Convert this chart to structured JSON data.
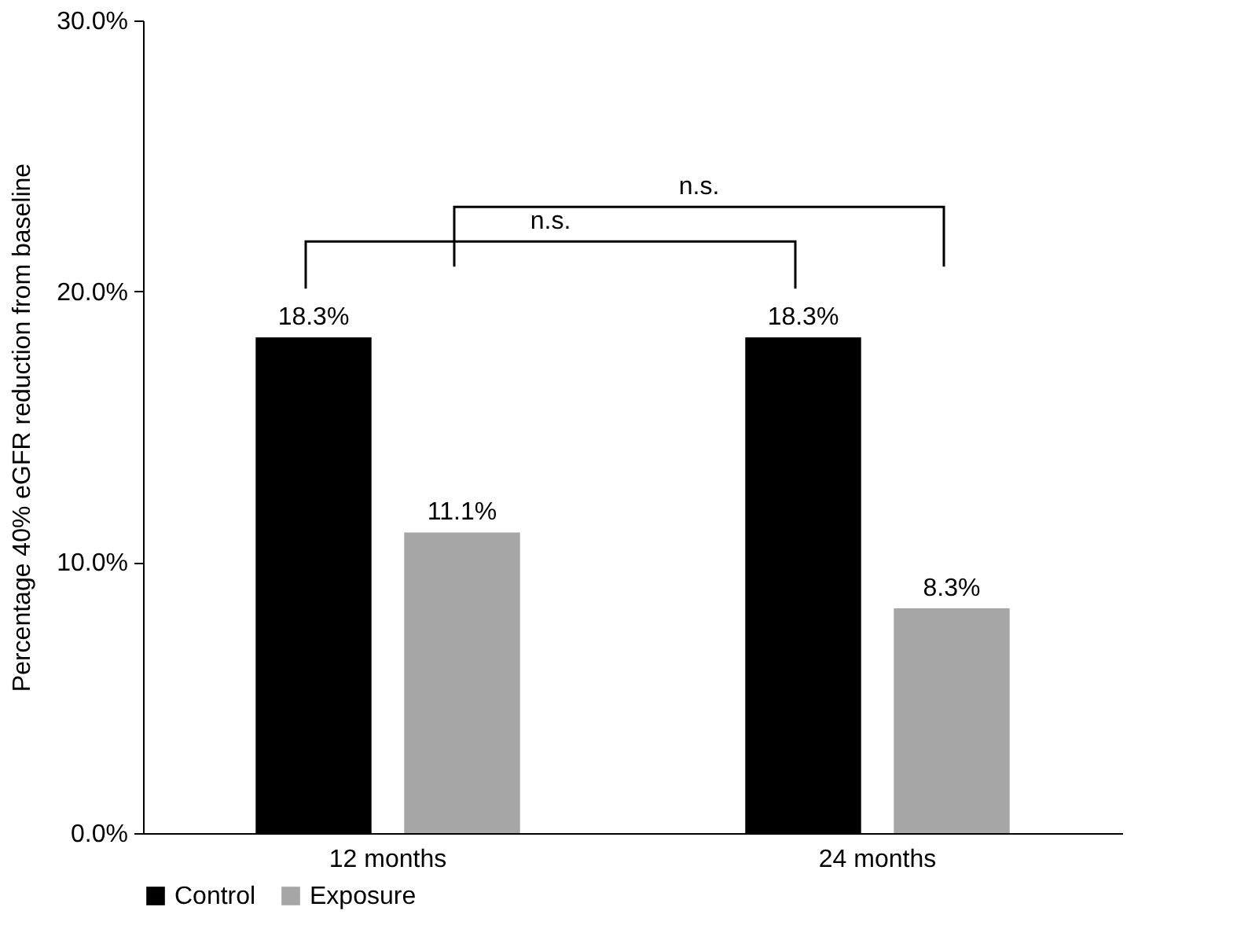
{
  "chart_data": {
    "type": "bar",
    "ylabel": "Percentage 40% eGFR reduction from baseline",
    "categories": [
      "12 months",
      "24 months"
    ],
    "series": [
      {
        "name": "Control",
        "color": "#000000",
        "values": [
          18.3,
          18.3
        ],
        "value_labels": [
          "18.3%",
          "18.3%"
        ]
      },
      {
        "name": "Exposure",
        "color": "#a6a6a6",
        "values": [
          11.1,
          8.3
        ],
        "value_labels": [
          "11.1%",
          "8.3%"
        ]
      }
    ],
    "ylim": [
      0,
      30
    ],
    "yticks": [
      {
        "value": 0,
        "label": "0.0%"
      },
      {
        "value": 10,
        "label": "10.0%"
      },
      {
        "value": 20,
        "label": "20.0%"
      },
      {
        "value": 30,
        "label": "30.0%"
      }
    ],
    "grid": false,
    "legend": "bottom",
    "annotations": [
      "n.s.",
      "n.s."
    ]
  }
}
